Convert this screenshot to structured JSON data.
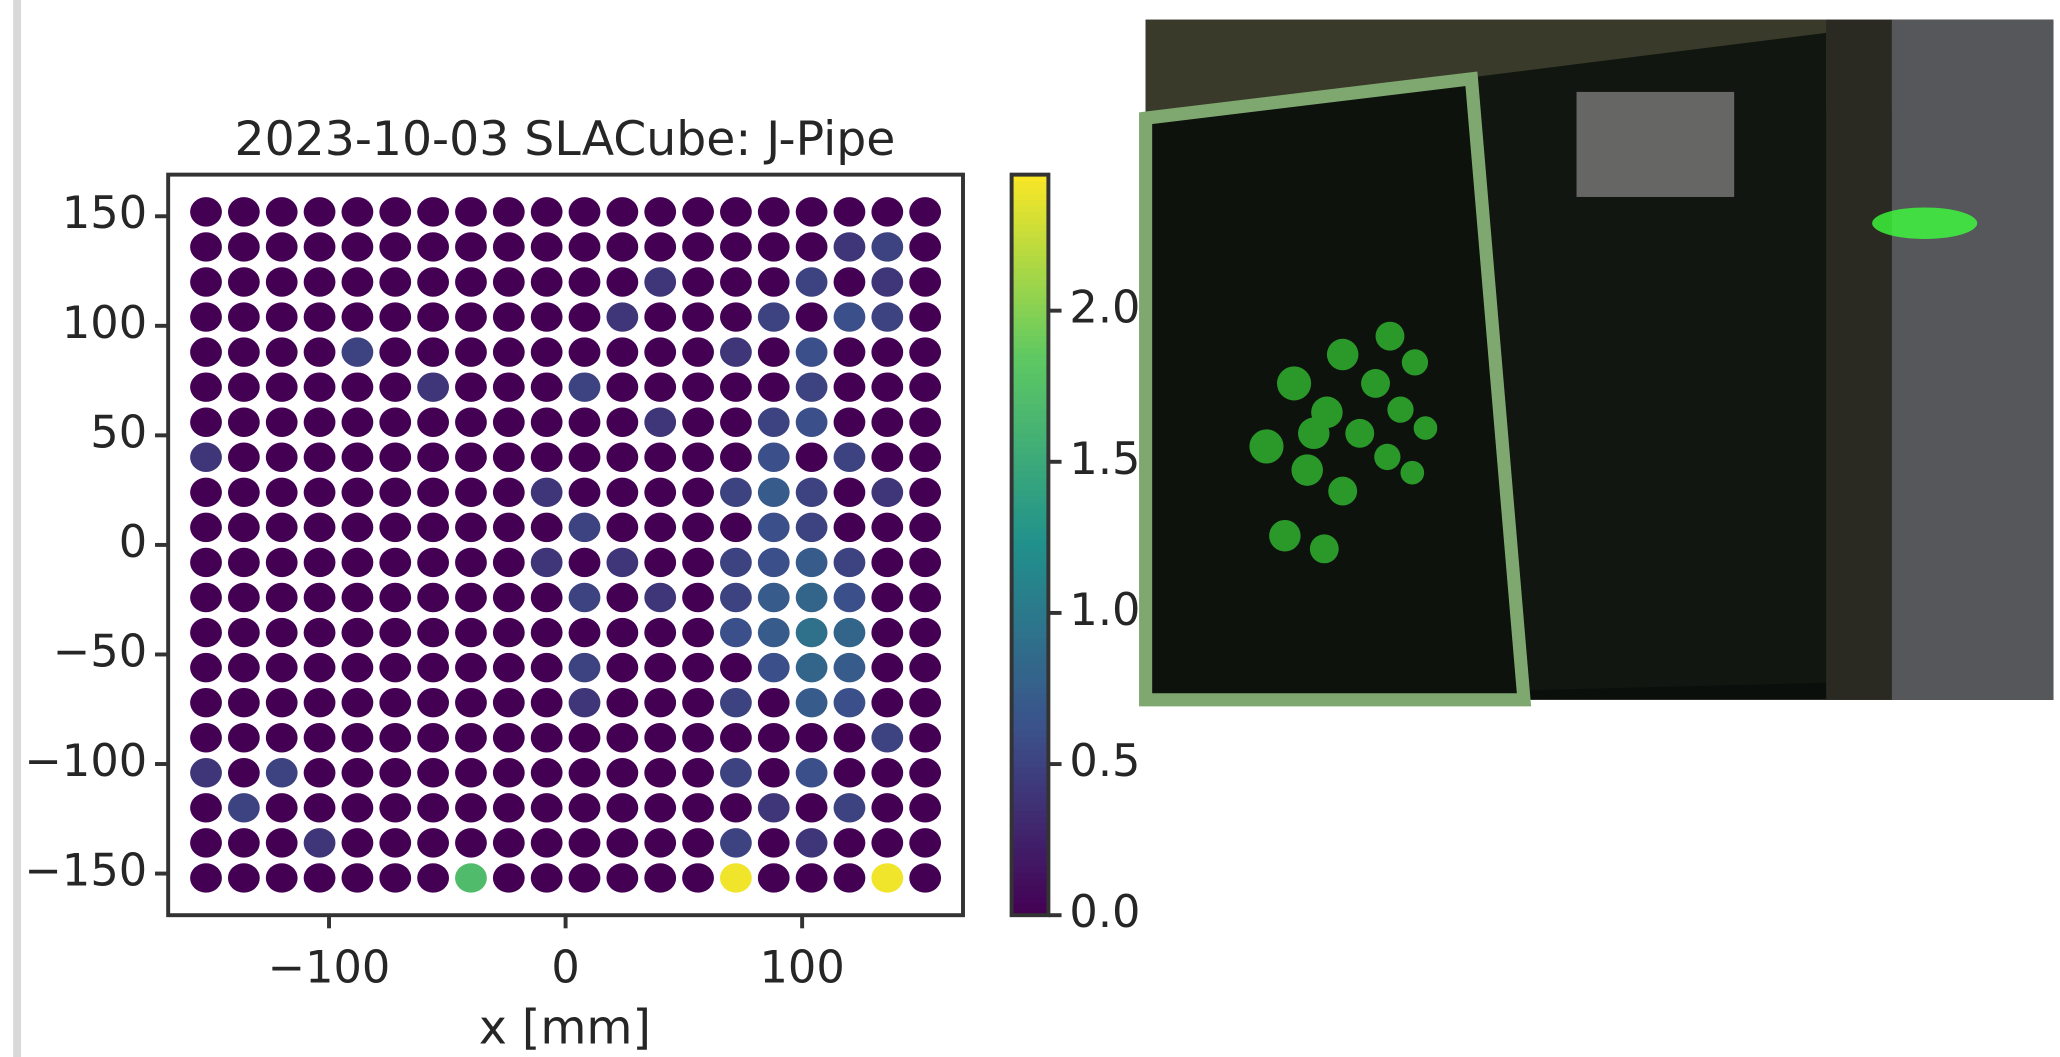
{
  "chart_data": {
    "type": "scatter",
    "title": "2023-10-03 SLACube: J-Pipe",
    "xlabel": "x [mm]",
    "x": [
      -152,
      -136,
      -120,
      -104,
      -88,
      -72,
      -56,
      -40,
      -24,
      -8,
      8,
      24,
      40,
      56,
      72,
      88,
      104,
      120,
      136,
      152
    ],
    "y": [
      -152,
      -136,
      -120,
      -104,
      -88,
      -72,
      -56,
      -40,
      -24,
      -8,
      8,
      24,
      40,
      56,
      72,
      88,
      104,
      120,
      136,
      152
    ],
    "z": [
      [
        0,
        0,
        0,
        0,
        0,
        0,
        0,
        1.7,
        0,
        0,
        0,
        0,
        0,
        0,
        2.4,
        0,
        0,
        0,
        2.4,
        0
      ],
      [
        0,
        0,
        0,
        0.4,
        0,
        0,
        0,
        0,
        0,
        0,
        0,
        0,
        0,
        0,
        0.5,
        0,
        0.4,
        0,
        0,
        0
      ],
      [
        0,
        0.5,
        0,
        0,
        0,
        0,
        0,
        0,
        0,
        0,
        0,
        0,
        0,
        0,
        0,
        0.4,
        0,
        0.5,
        0,
        0
      ],
      [
        0.4,
        0,
        0.5,
        0,
        0,
        0,
        0,
        0,
        0,
        0,
        0,
        0,
        0,
        0,
        0.5,
        0,
        0.6,
        0,
        0,
        0
      ],
      [
        0,
        0,
        0,
        0,
        0,
        0,
        0,
        0,
        0,
        0,
        0,
        0,
        0,
        0,
        0,
        0,
        0,
        0,
        0.5,
        0
      ],
      [
        0,
        0,
        0,
        0,
        0,
        0,
        0,
        0,
        0,
        0,
        0.4,
        0,
        0,
        0,
        0.5,
        0,
        0.7,
        0.6,
        0,
        0
      ],
      [
        0,
        0,
        0,
        0,
        0,
        0,
        0,
        0,
        0,
        0,
        0.5,
        0,
        0,
        0,
        0,
        0.6,
        0.8,
        0.7,
        0,
        0
      ],
      [
        0,
        0,
        0,
        0,
        0,
        0,
        0,
        0,
        0,
        0,
        0,
        0,
        0,
        0,
        0.6,
        0.7,
        0.9,
        0.8,
        0,
        0
      ],
      [
        0,
        0,
        0,
        0,
        0,
        0,
        0,
        0,
        0,
        0,
        0.5,
        0,
        0.4,
        0,
        0.5,
        0.7,
        0.8,
        0.6,
        0,
        0
      ],
      [
        0,
        0,
        0,
        0,
        0,
        0,
        0,
        0,
        0,
        0.4,
        0,
        0.4,
        0,
        0,
        0.5,
        0.6,
        0.7,
        0.5,
        0,
        0
      ],
      [
        0,
        0,
        0,
        0,
        0,
        0,
        0,
        0,
        0,
        0,
        0.5,
        0,
        0,
        0,
        0,
        0.6,
        0.5,
        0,
        0,
        0
      ],
      [
        0,
        0,
        0,
        0,
        0,
        0,
        0,
        0,
        0,
        0.4,
        0,
        0,
        0,
        0,
        0.5,
        0.7,
        0.5,
        0,
        0.4,
        0
      ],
      [
        0.4,
        0,
        0,
        0,
        0,
        0,
        0,
        0,
        0,
        0,
        0,
        0,
        0,
        0,
        0,
        0.6,
        0,
        0.5,
        0,
        0
      ],
      [
        0,
        0,
        0,
        0,
        0,
        0,
        0,
        0,
        0,
        0,
        0,
        0,
        0.4,
        0,
        0,
        0.5,
        0.6,
        0,
        0,
        0
      ],
      [
        0,
        0,
        0,
        0,
        0,
        0,
        0.4,
        0,
        0,
        0,
        0.5,
        0,
        0,
        0,
        0,
        0,
        0.5,
        0,
        0,
        0
      ],
      [
        0,
        0,
        0,
        0,
        0.5,
        0,
        0,
        0,
        0,
        0,
        0,
        0,
        0,
        0,
        0.4,
        0,
        0.6,
        0,
        0,
        0
      ],
      [
        0,
        0,
        0,
        0,
        0,
        0,
        0,
        0,
        0,
        0,
        0,
        0.4,
        0,
        0,
        0,
        0.5,
        0,
        0.6,
        0.5,
        0
      ],
      [
        0,
        0,
        0,
        0,
        0,
        0,
        0,
        0,
        0,
        0,
        0,
        0,
        0.4,
        0,
        0,
        0,
        0.5,
        0,
        0.4,
        0
      ],
      [
        0,
        0,
        0,
        0,
        0,
        0,
        0,
        0,
        0,
        0,
        0,
        0,
        0,
        0,
        0,
        0,
        0,
        0.4,
        0.5,
        0
      ],
      [
        0,
        0,
        0,
        0,
        0,
        0,
        0,
        0,
        0,
        0,
        0,
        0,
        0,
        0,
        0,
        0,
        0,
        0,
        0,
        0
      ]
    ],
    "xlim": [
      -168,
      168
    ],
    "ylim": [
      -169,
      169
    ],
    "xticks": [
      {
        "value": -100,
        "label": "−100"
      },
      0,
      100
    ],
    "yticks": [
      {
        "value": -150,
        "label": "−150"
      },
      {
        "value": -100,
        "label": "−100"
      },
      {
        "value": -50,
        "label": "−50"
      },
      0,
      50,
      100,
      150
    ],
    "cmap": "viridis",
    "clim": [
      0,
      2.45
    ],
    "cticks": [
      {
        "value": 0,
        "label": "0.0"
      },
      {
        "value": 0.5,
        "label": "0.5"
      },
      {
        "value": 1,
        "label": "1.0"
      },
      {
        "value": 1.5,
        "label": "1.5"
      },
      {
        "value": 2,
        "label": "2.0"
      }
    ],
    "grid": false
  }
}
